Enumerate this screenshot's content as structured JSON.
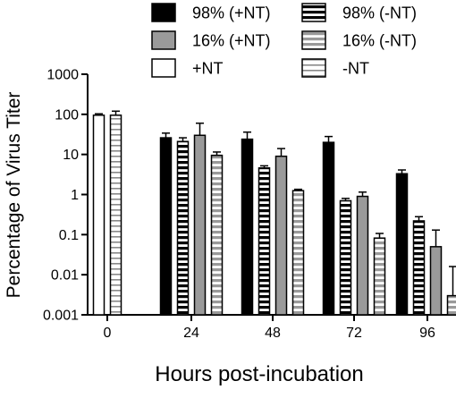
{
  "chart_data": {
    "type": "bar",
    "title": "",
    "xlabel": "Hours post-incubation",
    "ylabel": "Percentage of Virus Titer",
    "yscale": "log",
    "ylim": [
      0.001,
      1000
    ],
    "yticks": [
      {
        "value": 1000,
        "label": "1000"
      },
      {
        "value": 100,
        "label": "100"
      },
      {
        "value": 10,
        "label": "10"
      },
      {
        "value": 1,
        "label": "1"
      },
      {
        "value": 0.1,
        "label": "0.1"
      },
      {
        "value": 0.01,
        "label": "0.01"
      },
      {
        "value": 0.001,
        "label": "0.001"
      }
    ],
    "categories": [
      "0",
      "24",
      "48",
      "72",
      "96"
    ],
    "legend_position": "top",
    "series": [
      {
        "name": "98% (+NT)",
        "fill": "solid-black",
        "values": [
          null,
          26,
          24,
          20,
          3.3
        ],
        "errors": [
          null,
          8,
          12,
          8,
          0.8
        ]
      },
      {
        "name": "98% (-NT)",
        "fill": "black-white-stripes",
        "values": [
          null,
          21,
          4.6,
          0.7,
          0.22
        ],
        "errors": [
          null,
          5,
          0.6,
          0.1,
          0.06
        ]
      },
      {
        "name": "16% (+NT)",
        "fill": "solid-gray",
        "values": [
          null,
          30,
          9,
          0.9,
          0.05
        ],
        "errors": [
          null,
          30,
          5,
          0.25,
          0.08
        ]
      },
      {
        "name": "16% (-NT)",
        "fill": "gray-white-stripes",
        "values": [
          null,
          9.5,
          1.25,
          0.082,
          0.003
        ],
        "errors": [
          null,
          2,
          0.1,
          0.025,
          0.013
        ]
      },
      {
        "name": "+NT",
        "fill": "white",
        "values": [
          95,
          null,
          null,
          null,
          null
        ],
        "errors": [
          8,
          null,
          null,
          null,
          null
        ]
      },
      {
        "name": "-NT",
        "fill": "white-gray-stripes",
        "values": [
          95,
          null,
          null,
          null,
          null
        ],
        "errors": [
          25,
          null,
          null,
          null,
          null
        ]
      }
    ],
    "grid": false
  }
}
